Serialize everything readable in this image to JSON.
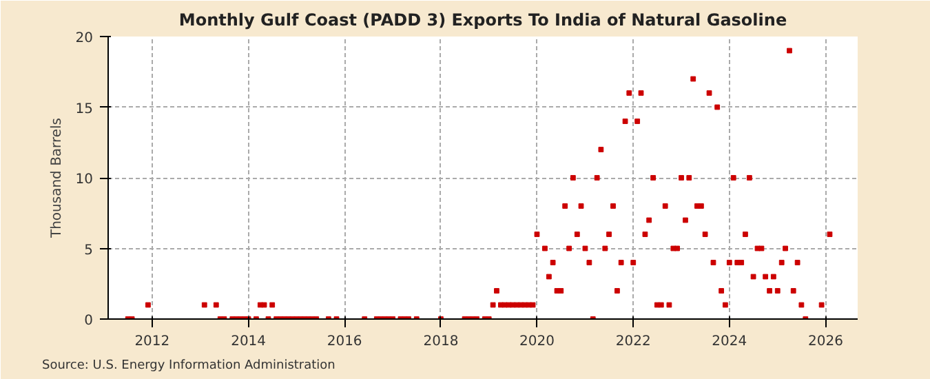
{
  "chart_data": {
    "type": "scatter",
    "title": "Monthly Gulf Coast (PADD 3) Exports To India of Natural Gasoline",
    "ylabel": "Thousand Barrels",
    "annotations": [
      "Source: U.S. Energy Information Administration"
    ],
    "x": [
      "2011-07",
      "2011-08",
      "2011-12",
      "2013-02",
      "2013-05",
      "2013-06",
      "2013-07",
      "2013-09",
      "2013-10",
      "2013-11",
      "2013-12",
      "2014-01",
      "2014-03",
      "2014-04",
      "2014-05",
      "2014-06",
      "2014-07",
      "2014-08",
      "2014-09",
      "2014-10",
      "2014-11",
      "2014-12",
      "2015-01",
      "2015-02",
      "2015-03",
      "2015-04",
      "2015-05",
      "2015-06",
      "2015-09",
      "2015-11",
      "2016-06",
      "2016-09",
      "2016-10",
      "2016-11",
      "2016-12",
      "2017-01",
      "2017-03",
      "2017-04",
      "2017-05",
      "2017-07",
      "2018-01",
      "2018-07",
      "2018-08",
      "2018-09",
      "2018-10",
      "2018-12",
      "2019-01",
      "2019-02",
      "2019-03",
      "2019-04",
      "2019-05",
      "2019-06",
      "2019-07",
      "2019-08",
      "2019-09",
      "2019-10",
      "2019-11",
      "2019-12",
      "2020-01",
      "2020-03",
      "2020-04",
      "2020-05",
      "2020-06",
      "2020-07",
      "2020-08",
      "2020-09",
      "2020-10",
      "2020-11",
      "2020-12",
      "2021-01",
      "2021-02",
      "2021-03",
      "2021-04",
      "2021-05",
      "2021-06",
      "2021-07",
      "2021-08",
      "2021-09",
      "2021-10",
      "2021-11",
      "2021-12",
      "2022-01",
      "2022-02",
      "2022-03",
      "2022-04",
      "2022-05",
      "2022-06",
      "2022-07",
      "2022-08",
      "2022-09",
      "2022-10",
      "2022-11",
      "2022-12",
      "2023-01",
      "2023-02",
      "2023-03",
      "2023-04",
      "2023-05",
      "2023-06",
      "2023-07",
      "2023-08",
      "2023-09",
      "2023-10",
      "2023-11",
      "2023-12",
      "2024-01",
      "2024-02",
      "2024-03",
      "2024-04",
      "2024-05",
      "2024-06",
      "2024-07",
      "2024-08",
      "2024-09",
      "2024-10",
      "2024-11",
      "2024-12",
      "2025-01",
      "2025-02",
      "2025-03",
      "2025-04",
      "2025-05",
      "2025-06",
      "2025-07",
      "2025-08",
      "2025-12",
      "2026-02"
    ],
    "series": [
      {
        "color": "#cc0000",
        "values": [
          0,
          0,
          1,
          1,
          1,
          0,
          0,
          0,
          0,
          0,
          0,
          0,
          0,
          1,
          1,
          0,
          1,
          0,
          0,
          0,
          0,
          0,
          0,
          0,
          0,
          0,
          0,
          0,
          0,
          0,
          0,
          0,
          0,
          0,
          0,
          0,
          0,
          0,
          0,
          0,
          0,
          0,
          0,
          0,
          0,
          0,
          0,
          1,
          2,
          1,
          1,
          1,
          1,
          1,
          1,
          1,
          1,
          1,
          6,
          5,
          3,
          4,
          2,
          2,
          8,
          5,
          10,
          6,
          8,
          5,
          4,
          0,
          10,
          12,
          5,
          6,
          8,
          2,
          4,
          14,
          16,
          4,
          14,
          16,
          6,
          7,
          10,
          1,
          1,
          8,
          1,
          5,
          5,
          10,
          7,
          10,
          17,
          8,
          8,
          6,
          16,
          4,
          15,
          2,
          1,
          4,
          10,
          4,
          4,
          6,
          10,
          3,
          5,
          5,
          3,
          2,
          3,
          2,
          4,
          5,
          19,
          2,
          4,
          1,
          0,
          1,
          6
        ]
      }
    ],
    "xlim": [
      "2011-02",
      "2026-09"
    ],
    "xticks": [
      "2012",
      "2014",
      "2016",
      "2018",
      "2020",
      "2022",
      "2024",
      "2026"
    ],
    "ylim": [
      0,
      20
    ],
    "yticks": [
      0,
      5,
      10,
      15,
      20
    ],
    "grid": true,
    "marker": "square"
  }
}
